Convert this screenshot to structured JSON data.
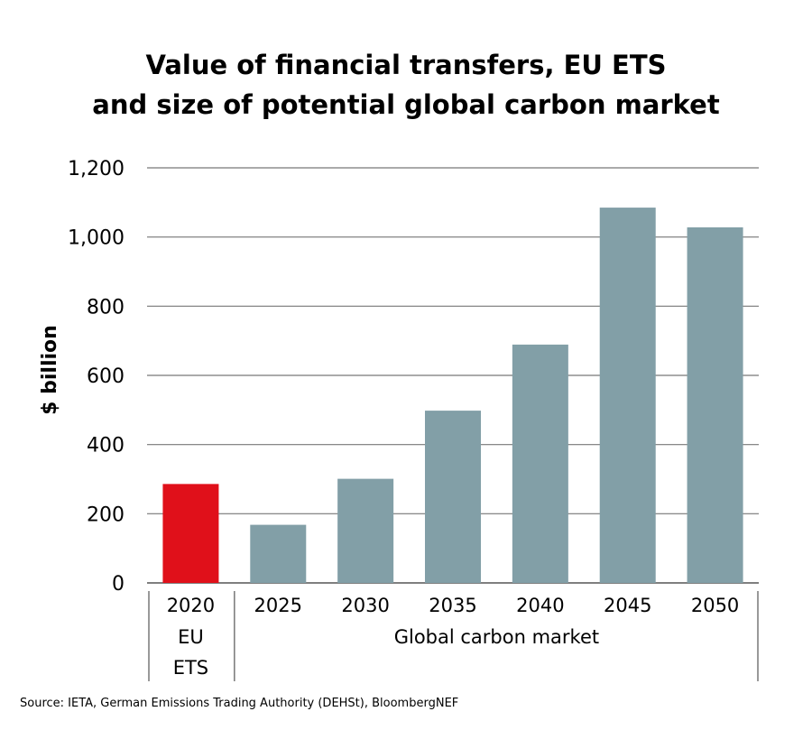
{
  "chart_data": {
    "type": "bar",
    "title_lines": [
      "Value of financial transfers, EU ETS",
      "and size of potential global carbon market"
    ],
    "ylabel": "$ billion",
    "xlabel": "",
    "ylim": [
      0,
      1200
    ],
    "yticks": [
      0,
      200,
      400,
      600,
      800,
      1000,
      1200
    ],
    "ytick_labels": [
      "0",
      "200",
      "400",
      "600",
      "800",
      "1,000",
      "1,200"
    ],
    "grid": true,
    "categories": [
      "2020",
      "2025",
      "2030",
      "2035",
      "2040",
      "2045",
      "2050"
    ],
    "values": [
      286,
      168,
      301,
      498,
      689,
      1085,
      1028
    ],
    "colors": [
      "#e0101a",
      "#829fa7",
      "#829fa7",
      "#829fa7",
      "#829fa7",
      "#829fa7",
      "#829fa7"
    ],
    "groups": [
      {
        "label_lines": [
          "EU",
          "ETS"
        ],
        "categories": [
          "2020"
        ]
      },
      {
        "label_lines": [
          "Global carbon market"
        ],
        "categories": [
          "2025",
          "2030",
          "2035",
          "2040",
          "2045",
          "2050"
        ]
      }
    ],
    "source": "Source: IETA, German Emissions Trading Authority (DEHSt), BloombergNEF"
  }
}
